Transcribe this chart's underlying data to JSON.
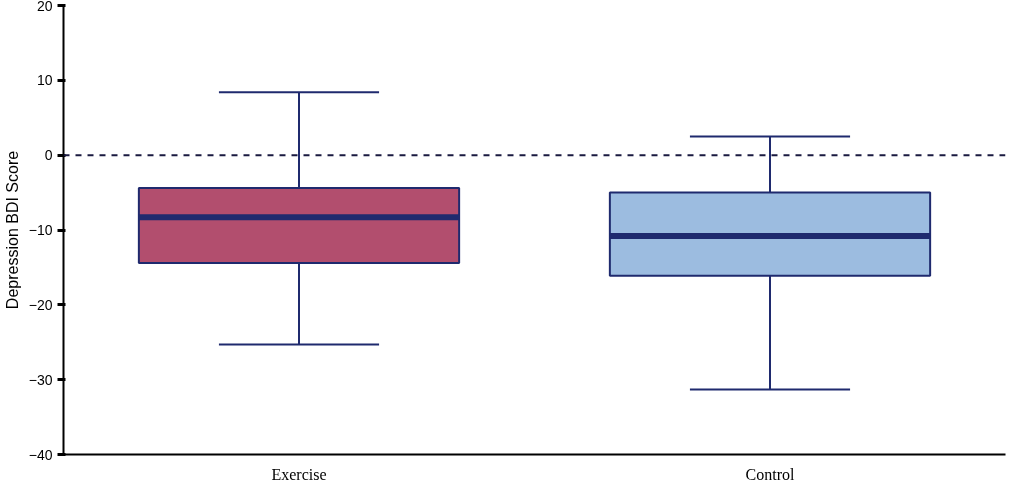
{
  "chart_data": {
    "type": "box",
    "ylabel": "Depression BDI Score",
    "categories": [
      "Exercise",
      "Control"
    ],
    "colors": [
      "#b24e6e",
      "#9cbce0"
    ],
    "boxes": [
      {
        "low": -25.3,
        "q1": -14.4,
        "median": -8.3,
        "q3": -4.4,
        "high": 8.4
      },
      {
        "low": -31.3,
        "q1": -16.1,
        "median": -10.8,
        "q3": -5.0,
        "high": 2.5
      }
    ],
    "ylim": [
      -40,
      20
    ],
    "yticks": [
      -40,
      -30,
      -20,
      -10,
      0,
      10,
      20
    ],
    "grid": false,
    "ref_lines": [
      {
        "axis": "y",
        "value": 0,
        "label": null,
        "color": "#1a1a40",
        "line_style": "dashed"
      }
    ]
  }
}
